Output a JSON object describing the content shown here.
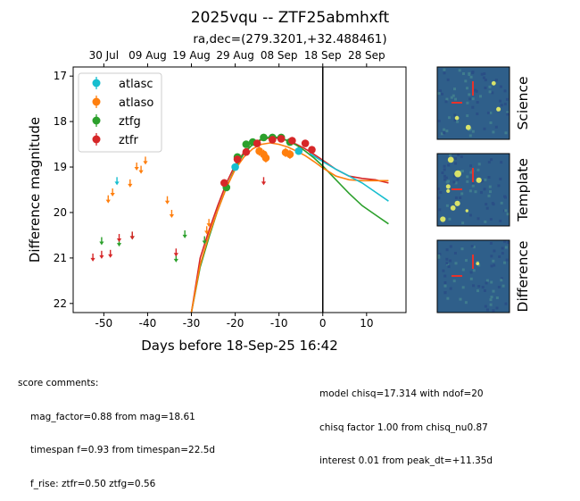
{
  "title": "2025vqu -- ZTF25abmhxft",
  "subtitle": "ra,dec=(279.3201,+32.488461)",
  "stamp_labels": [
    "Science",
    "Template",
    "Difference"
  ],
  "score_comments": {
    "header": "score comments:",
    "lines": [
      "mag_factor=0.88 from mag=18.61",
      "timespan f=0.93 from timespan=22.5d",
      "f_rise: ztfr=0.50 ztfg=0.56"
    ]
  },
  "model_comments": [
    "model chisq=17.314 with ndof=20",
    "chisq factor 1.00 from chisq_nu0.87",
    "interest 0.01 from peak_dt=+11.35d"
  ],
  "colors": {
    "atlasc": "#17becf",
    "atlaso": "#ff7f0e",
    "ztfg": "#2ca02c",
    "ztfr": "#d62728"
  },
  "chart_data": {
    "type": "scatter",
    "xlabel": "Days before 18-Sep-25 16:42",
    "ylabel": "Difference magnitude",
    "xlim": [
      -57,
      19
    ],
    "ylim": [
      22.2,
      16.8
    ],
    "y_inverted": true,
    "x_ticks": [
      -50,
      -40,
      -30,
      -20,
      -10,
      0,
      10
    ],
    "y_ticks": [
      17,
      18,
      19,
      20,
      21,
      22
    ],
    "top_axis_ticks": [
      {
        "x": -50,
        "label": "30 Jul"
      },
      {
        "x": -40,
        "label": "09 Aug"
      },
      {
        "x": -30,
        "label": "19 Aug"
      },
      {
        "x": -20,
        "label": "29 Aug"
      },
      {
        "x": -10,
        "label": "08 Sep"
      },
      {
        "x": 0,
        "label": "18 Sep"
      },
      {
        "x": 10,
        "label": "28 Sep"
      }
    ],
    "vline_x": 0,
    "legend_position": "upper-left",
    "series": [
      {
        "name": "atlasc",
        "detections": [
          [
            -20,
            19.0,
            0.08
          ],
          [
            -5.5,
            18.65,
            0.06
          ]
        ],
        "upper_limits": [
          [
            -47,
            19.3
          ]
        ]
      },
      {
        "name": "atlaso",
        "detections": [
          [
            -14.5,
            18.65,
            0.1
          ],
          [
            -13.5,
            18.72,
            0.1
          ],
          [
            -13,
            18.8,
            0.1
          ],
          [
            -8.5,
            18.68,
            0.1
          ],
          [
            -7.5,
            18.72,
            0.1
          ]
        ],
        "upper_limits": [
          [
            -49,
            19.7
          ],
          [
            -48,
            19.55
          ],
          [
            -44,
            19.35
          ],
          [
            -42.5,
            18.98
          ],
          [
            -41.5,
            19.05
          ],
          [
            -40.5,
            18.85
          ],
          [
            -35.5,
            19.72
          ],
          [
            -34.5,
            20.02
          ],
          [
            -26.5,
            20.38
          ],
          [
            -26,
            20.22
          ]
        ]
      },
      {
        "name": "ztfg",
        "detections": [
          [
            -22,
            19.45,
            0.06
          ],
          [
            -19.5,
            18.78,
            0.05
          ],
          [
            -17.5,
            18.5,
            0.05
          ],
          [
            -16,
            18.45,
            0.05
          ],
          [
            -13.5,
            18.35,
            0.05
          ],
          [
            -11.5,
            18.35,
            0.05
          ],
          [
            -9.5,
            18.35,
            0.05
          ],
          [
            -7.5,
            18.45,
            0.05
          ]
        ],
        "upper_limits": [
          [
            -50.5,
            20.62
          ],
          [
            -46.5,
            20.65
          ],
          [
            -43.5,
            20.5
          ],
          [
            -33.5,
            21.0
          ],
          [
            -31.5,
            20.47
          ],
          [
            -27,
            20.6
          ]
        ]
      },
      {
        "name": "ztfr",
        "detections": [
          [
            -22.5,
            19.35,
            0.06
          ],
          [
            -19.5,
            18.83,
            0.05
          ],
          [
            -17.5,
            18.67,
            0.05
          ],
          [
            -15,
            18.48,
            0.05
          ],
          [
            -11.5,
            18.4,
            0.05
          ],
          [
            -9.5,
            18.38,
            0.05
          ],
          [
            -7,
            18.42,
            0.05
          ],
          [
            -4,
            18.48,
            0.05
          ],
          [
            -2.5,
            18.62,
            0.05
          ]
        ],
        "upper_limits": [
          [
            -52.5,
            20.98
          ],
          [
            -50.5,
            20.92
          ],
          [
            -48.5,
            20.9
          ],
          [
            -46.5,
            20.55
          ],
          [
            -43.5,
            20.5
          ],
          [
            -33.5,
            20.87
          ],
          [
            -13.5,
            19.3
          ]
        ]
      }
    ],
    "model_curves": [
      {
        "name": "ztfr",
        "points": [
          [
            -30,
            22.2
          ],
          [
            -28,
            21.0
          ],
          [
            -26,
            20.4
          ],
          [
            -24,
            19.85
          ],
          [
            -22,
            19.35
          ],
          [
            -20,
            18.95
          ],
          [
            -18,
            18.68
          ],
          [
            -16,
            18.5
          ],
          [
            -14,
            18.4
          ],
          [
            -12,
            18.36
          ],
          [
            -10,
            18.37
          ],
          [
            -8,
            18.42
          ],
          [
            -6,
            18.5
          ],
          [
            -4,
            18.6
          ],
          [
            -2,
            18.72
          ],
          [
            0,
            18.85
          ],
          [
            3,
            19.05
          ],
          [
            6,
            19.2
          ],
          [
            9,
            19.25
          ],
          [
            12,
            19.28
          ],
          [
            15,
            19.35
          ]
        ]
      },
      {
        "name": "ztfg",
        "points": [
          [
            -30,
            22.2
          ],
          [
            -28,
            21.2
          ],
          [
            -26,
            20.55
          ],
          [
            -24,
            19.95
          ],
          [
            -22,
            19.45
          ],
          [
            -20,
            19.02
          ],
          [
            -18,
            18.7
          ],
          [
            -16,
            18.5
          ],
          [
            -14,
            18.38
          ],
          [
            -12,
            18.34
          ],
          [
            -10,
            18.35
          ],
          [
            -8,
            18.42
          ],
          [
            -6,
            18.52
          ],
          [
            -4,
            18.65
          ],
          [
            -2,
            18.8
          ],
          [
            0,
            18.98
          ],
          [
            3,
            19.28
          ],
          [
            6,
            19.58
          ],
          [
            9,
            19.85
          ],
          [
            12,
            20.05
          ],
          [
            15,
            20.25
          ]
        ]
      },
      {
        "name": "atlaso",
        "points": [
          [
            -30,
            22.2
          ],
          [
            -28,
            21.15
          ],
          [
            -26,
            20.5
          ],
          [
            -24,
            19.95
          ],
          [
            -22,
            19.45
          ],
          [
            -20,
            19.05
          ],
          [
            -18,
            18.78
          ],
          [
            -16,
            18.6
          ],
          [
            -14,
            18.5
          ],
          [
            -12,
            18.47
          ],
          [
            -10,
            18.5
          ],
          [
            -8,
            18.56
          ],
          [
            -6,
            18.65
          ],
          [
            -4,
            18.75
          ],
          [
            -2,
            18.88
          ],
          [
            0,
            19.02
          ],
          [
            3,
            19.2
          ],
          [
            6,
            19.28
          ],
          [
            9,
            19.3
          ],
          [
            12,
            19.3
          ],
          [
            15,
            19.3
          ]
        ]
      },
      {
        "name": "atlasc",
        "points": [
          [
            -3,
            18.7
          ],
          [
            0,
            18.88
          ],
          [
            3,
            19.05
          ],
          [
            6,
            19.2
          ],
          [
            9,
            19.35
          ],
          [
            12,
            19.55
          ],
          [
            15,
            19.75
          ]
        ]
      }
    ]
  }
}
